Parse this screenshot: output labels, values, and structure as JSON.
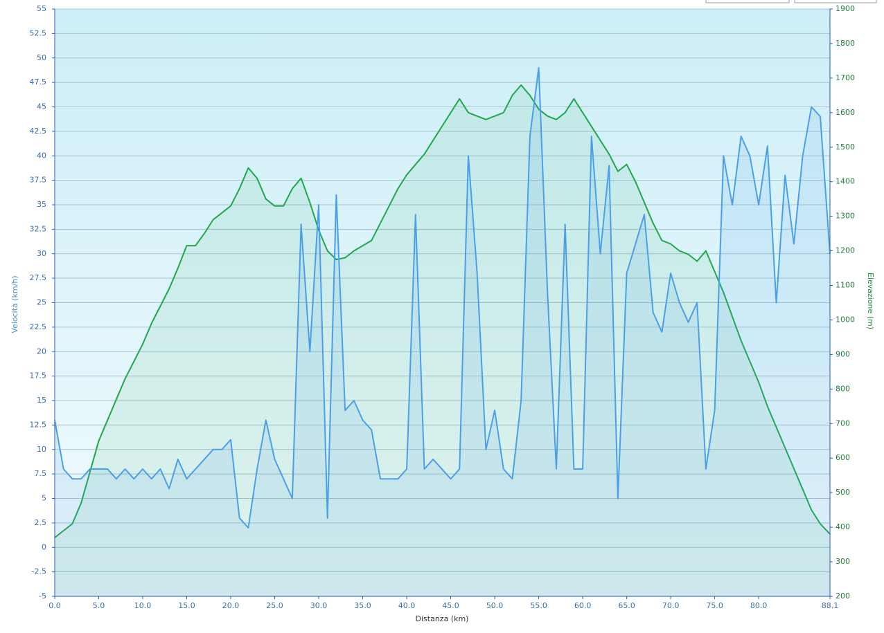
{
  "chart_data": {
    "type": "line",
    "x_label": "Distanza  (km)",
    "y_label": "Velocità (km/h)",
    "y2_label": "Elevazione (m)",
    "x": [
      0,
      1,
      2,
      3,
      4,
      5,
      6,
      7,
      8,
      9,
      10,
      11,
      12,
      13,
      14,
      15,
      16,
      17,
      18,
      19,
      20,
      21,
      22,
      23,
      24,
      25,
      26,
      27,
      28,
      29,
      30,
      31,
      32,
      33,
      34,
      35,
      36,
      37,
      38,
      39,
      40,
      41,
      42,
      43,
      44,
      45,
      46,
      47,
      48,
      49,
      50,
      51,
      52,
      53,
      54,
      55,
      56,
      57,
      58,
      59,
      60,
      61,
      62,
      63,
      64,
      65,
      66,
      67,
      68,
      69,
      70,
      71,
      72,
      73,
      74,
      75,
      76,
      77,
      78,
      79,
      80,
      81,
      82,
      83,
      84,
      85,
      86,
      87,
      88.1
    ],
    "series": [
      {
        "name": "Velocità",
        "color": "#4a9fe8",
        "values": [
          13,
          8,
          7,
          7,
          8,
          8,
          8,
          7,
          8,
          7,
          8,
          7,
          8,
          6,
          9,
          7,
          8,
          9,
          10,
          10,
          11,
          3,
          2,
          8,
          13,
          9,
          7,
          5,
          33,
          20,
          35,
          3,
          36,
          14,
          15,
          13,
          12,
          7,
          7,
          7,
          8,
          34,
          8,
          9,
          8,
          7,
          8,
          40,
          28,
          10,
          14,
          8,
          7,
          15,
          42,
          49,
          26,
          8,
          33,
          8,
          8,
          42,
          30,
          39,
          5,
          28,
          31,
          34,
          24,
          22,
          28,
          25,
          23,
          25,
          8,
          14,
          40,
          35,
          42,
          40,
          35,
          41,
          25,
          38,
          31,
          40,
          45,
          44,
          30
        ]
      },
      {
        "name": "Elevazione",
        "color": "#1fa84a",
        "axis": "y2",
        "values": [
          370,
          390,
          410,
          470,
          560,
          650,
          710,
          770,
          830,
          880,
          930,
          990,
          1040,
          1090,
          1150,
          1215,
          1215,
          1250,
          1290,
          1310,
          1330,
          1380,
          1440,
          1410,
          1350,
          1330,
          1330,
          1380,
          1410,
          1340,
          1260,
          1200,
          1175,
          1180,
          1200,
          1215,
          1230,
          1280,
          1330,
          1380,
          1420,
          1450,
          1480,
          1520,
          1560,
          1600,
          1640,
          1600,
          1590,
          1580,
          1590,
          1600,
          1650,
          1680,
          1650,
          1610,
          1590,
          1580,
          1600,
          1640,
          1600,
          1560,
          1520,
          1480,
          1430,
          1450,
          1400,
          1340,
          1280,
          1230,
          1220,
          1200,
          1190,
          1170,
          1200,
          1140,
          1080,
          1010,
          940,
          880,
          820,
          750,
          690,
          630,
          570,
          510,
          450,
          410,
          380
        ]
      }
    ],
    "xlim": [
      0,
      88.1
    ],
    "xticks": [
      {
        "value": 0,
        "label": "0.0"
      },
      {
        "value": 5,
        "label": "5.0"
      },
      {
        "value": 10,
        "label": "10.0"
      },
      {
        "value": 15,
        "label": "15.0"
      },
      {
        "value": 20,
        "label": "20.0"
      },
      {
        "value": 25,
        "label": "25.0"
      },
      {
        "value": 30,
        "label": "30.0"
      },
      {
        "value": 35,
        "label": "35.0"
      },
      {
        "value": 40,
        "label": "40.0"
      },
      {
        "value": 45,
        "label": "45.0"
      },
      {
        "value": 50,
        "label": "50.0"
      },
      {
        "value": 55,
        "label": "55.0"
      },
      {
        "value": 60,
        "label": "60.0"
      },
      {
        "value": 65,
        "label": "65.0"
      },
      {
        "value": 70,
        "label": "70.0"
      },
      {
        "value": 75,
        "label": "75.0"
      },
      {
        "value": 80,
        "label": "80.0"
      },
      88.1
    ],
    "ylim": [
      -5,
      55
    ],
    "yticks": [
      -5,
      -2.5,
      0,
      2.5,
      5,
      7.5,
      10,
      12.5,
      15,
      17.5,
      20,
      22.5,
      25,
      27.5,
      30,
      32.5,
      35,
      37.5,
      40,
      42.5,
      45,
      47.5,
      50,
      52.5,
      55
    ],
    "y2lim": [
      200,
      1900
    ],
    "y2ticks": [
      200,
      300,
      400,
      500,
      600,
      700,
      800,
      900,
      1000,
      1100,
      1200,
      1300,
      1400,
      1500,
      1600,
      1700,
      1800,
      1900
    ],
    "grid": true
  }
}
